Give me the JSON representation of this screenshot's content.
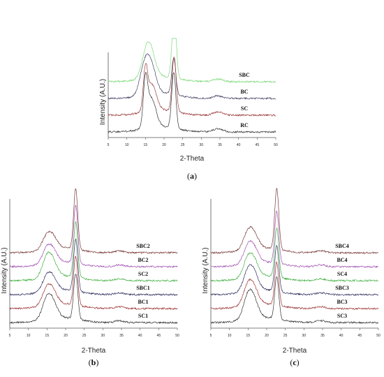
{
  "chart_data": [
    {
      "panel": "a",
      "type": "line",
      "caption": "(a)",
      "xlabel": "2-Theta",
      "ylabel": "Intensity (A.U.)",
      "xlim": [
        5,
        50
      ],
      "xticks": [
        5,
        10,
        15,
        20,
        25,
        30,
        35,
        40,
        45,
        50
      ],
      "grid": false,
      "series": [
        {
          "name": "SBC",
          "color": "#7ad878",
          "order": 0,
          "peaks": [
            {
              "x": 15.2,
              "h": 0.35
            },
            {
              "x": 16.6,
              "h": 0.28
            },
            {
              "x": 22.7,
              "h": 1.0
            },
            {
              "x": 34.5,
              "h": 0.04
            }
          ]
        },
        {
          "name": "BC",
          "color": "#444466",
          "order": 1,
          "peaks": [
            {
              "x": 14.8,
              "h": 0.45
            },
            {
              "x": 16.7,
              "h": 0.35
            },
            {
              "x": 22.6,
              "h": 0.55
            },
            {
              "x": 34.5,
              "h": 0.04
            }
          ]
        },
        {
          "name": "SC",
          "color": "#9a3a3a",
          "order": 2,
          "peaks": [
            {
              "x": 15.0,
              "h": 0.55
            },
            {
              "x": 16.6,
              "h": 0.4
            },
            {
              "x": 22.7,
              "h": 0.82
            },
            {
              "x": 34.5,
              "h": 0.05
            }
          ]
        },
        {
          "name": "RC",
          "color": "#333333",
          "order": 3,
          "peaks": [
            {
              "x": 15.0,
              "h": 0.62
            },
            {
              "x": 16.5,
              "h": 0.45
            },
            {
              "x": 22.6,
              "h": 0.85
            },
            {
              "x": 34.5,
              "h": 0.05
            }
          ]
        }
      ]
    },
    {
      "panel": "b",
      "type": "line",
      "caption": "(b)",
      "xlabel": "2-Theta",
      "ylabel": "Intensity (A.U.)",
      "xlim": [
        5,
        50
      ],
      "xticks": [
        5,
        10,
        15,
        20,
        25,
        30,
        35,
        40,
        45,
        50
      ],
      "grid": false,
      "series": [
        {
          "name": "SBC2",
          "color": "#7a3a3a",
          "order": 0,
          "peaks": [
            {
              "x": 14.9,
              "h": 0.2
            },
            {
              "x": 16.6,
              "h": 0.16
            },
            {
              "x": 22.7,
              "h": 1.0
            },
            {
              "x": 34.5,
              "h": 0.03
            }
          ]
        },
        {
          "name": "BC2",
          "color": "#a050b0",
          "order": 1,
          "peaks": [
            {
              "x": 14.9,
              "h": 0.22
            },
            {
              "x": 16.6,
              "h": 0.17
            },
            {
              "x": 22.7,
              "h": 0.95
            },
            {
              "x": 34.5,
              "h": 0.03
            }
          ]
        },
        {
          "name": "SC2",
          "color": "#44b044",
          "order": 2,
          "peaks": [
            {
              "x": 14.9,
              "h": 0.3
            },
            {
              "x": 16.6,
              "h": 0.2
            },
            {
              "x": 22.7,
              "h": 0.9
            },
            {
              "x": 34.5,
              "h": 0.03
            }
          ]
        },
        {
          "name": "SBC1",
          "color": "#303060",
          "order": 3,
          "peaks": [
            {
              "x": 14.9,
              "h": 0.22
            },
            {
              "x": 16.6,
              "h": 0.17
            },
            {
              "x": 22.7,
              "h": 0.85
            },
            {
              "x": 34.5,
              "h": 0.03
            }
          ]
        },
        {
          "name": "BC1",
          "color": "#9a3030",
          "order": 4,
          "peaks": [
            {
              "x": 14.9,
              "h": 0.25
            },
            {
              "x": 16.6,
              "h": 0.18
            },
            {
              "x": 22.7,
              "h": 0.8
            },
            {
              "x": 34.5,
              "h": 0.03
            }
          ]
        },
        {
          "name": "SC1",
          "color": "#333333",
          "order": 5,
          "peaks": [
            {
              "x": 14.9,
              "h": 0.3
            },
            {
              "x": 16.6,
              "h": 0.22
            },
            {
              "x": 22.7,
              "h": 0.75
            },
            {
              "x": 34.5,
              "h": 0.03
            }
          ]
        }
      ]
    },
    {
      "panel": "c",
      "type": "line",
      "caption": "(c)",
      "xlabel": "2-Theta",
      "ylabel": "Intensity (A.U.)",
      "xlim": [
        5,
        50
      ],
      "xticks": [
        5,
        10,
        15,
        20,
        25,
        30,
        35,
        40,
        45,
        50
      ],
      "grid": false,
      "series": [
        {
          "name": "SBC4",
          "color": "#7a3a3a",
          "order": 0,
          "peaks": [
            {
              "x": 14.9,
              "h": 0.25
            },
            {
              "x": 16.6,
              "h": 0.2
            },
            {
              "x": 22.7,
              "h": 1.0
            },
            {
              "x": 34.5,
              "h": 0.03
            }
          ]
        },
        {
          "name": "BC4",
          "color": "#a050b0",
          "order": 1,
          "peaks": [
            {
              "x": 14.9,
              "h": 0.25
            },
            {
              "x": 16.6,
              "h": 0.2
            },
            {
              "x": 22.7,
              "h": 0.85
            },
            {
              "x": 34.5,
              "h": 0.03
            }
          ]
        },
        {
          "name": "SC4",
          "color": "#44b044",
          "order": 2,
          "peaks": [
            {
              "x": 14.9,
              "h": 0.28
            },
            {
              "x": 16.6,
              "h": 0.22
            },
            {
              "x": 22.7,
              "h": 0.8
            },
            {
              "x": 34.5,
              "h": 0.03
            }
          ]
        },
        {
          "name": "SBC3",
          "color": "#303060",
          "order": 3,
          "peaks": [
            {
              "x": 14.9,
              "h": 0.3
            },
            {
              "x": 16.6,
              "h": 0.24
            },
            {
              "x": 22.7,
              "h": 0.75
            },
            {
              "x": 34.5,
              "h": 0.03
            }
          ]
        },
        {
          "name": "BC3",
          "color": "#9a3030",
          "order": 4,
          "peaks": [
            {
              "x": 14.9,
              "h": 0.3
            },
            {
              "x": 16.6,
              "h": 0.22
            },
            {
              "x": 22.7,
              "h": 0.7
            },
            {
              "x": 34.5,
              "h": 0.03
            }
          ]
        },
        {
          "name": "SC3",
          "color": "#333333",
          "order": 5,
          "peaks": [
            {
              "x": 14.9,
              "h": 0.35
            },
            {
              "x": 16.6,
              "h": 0.25
            },
            {
              "x": 22.7,
              "h": 0.7
            },
            {
              "x": 34.5,
              "h": 0.03
            }
          ]
        }
      ]
    }
  ]
}
